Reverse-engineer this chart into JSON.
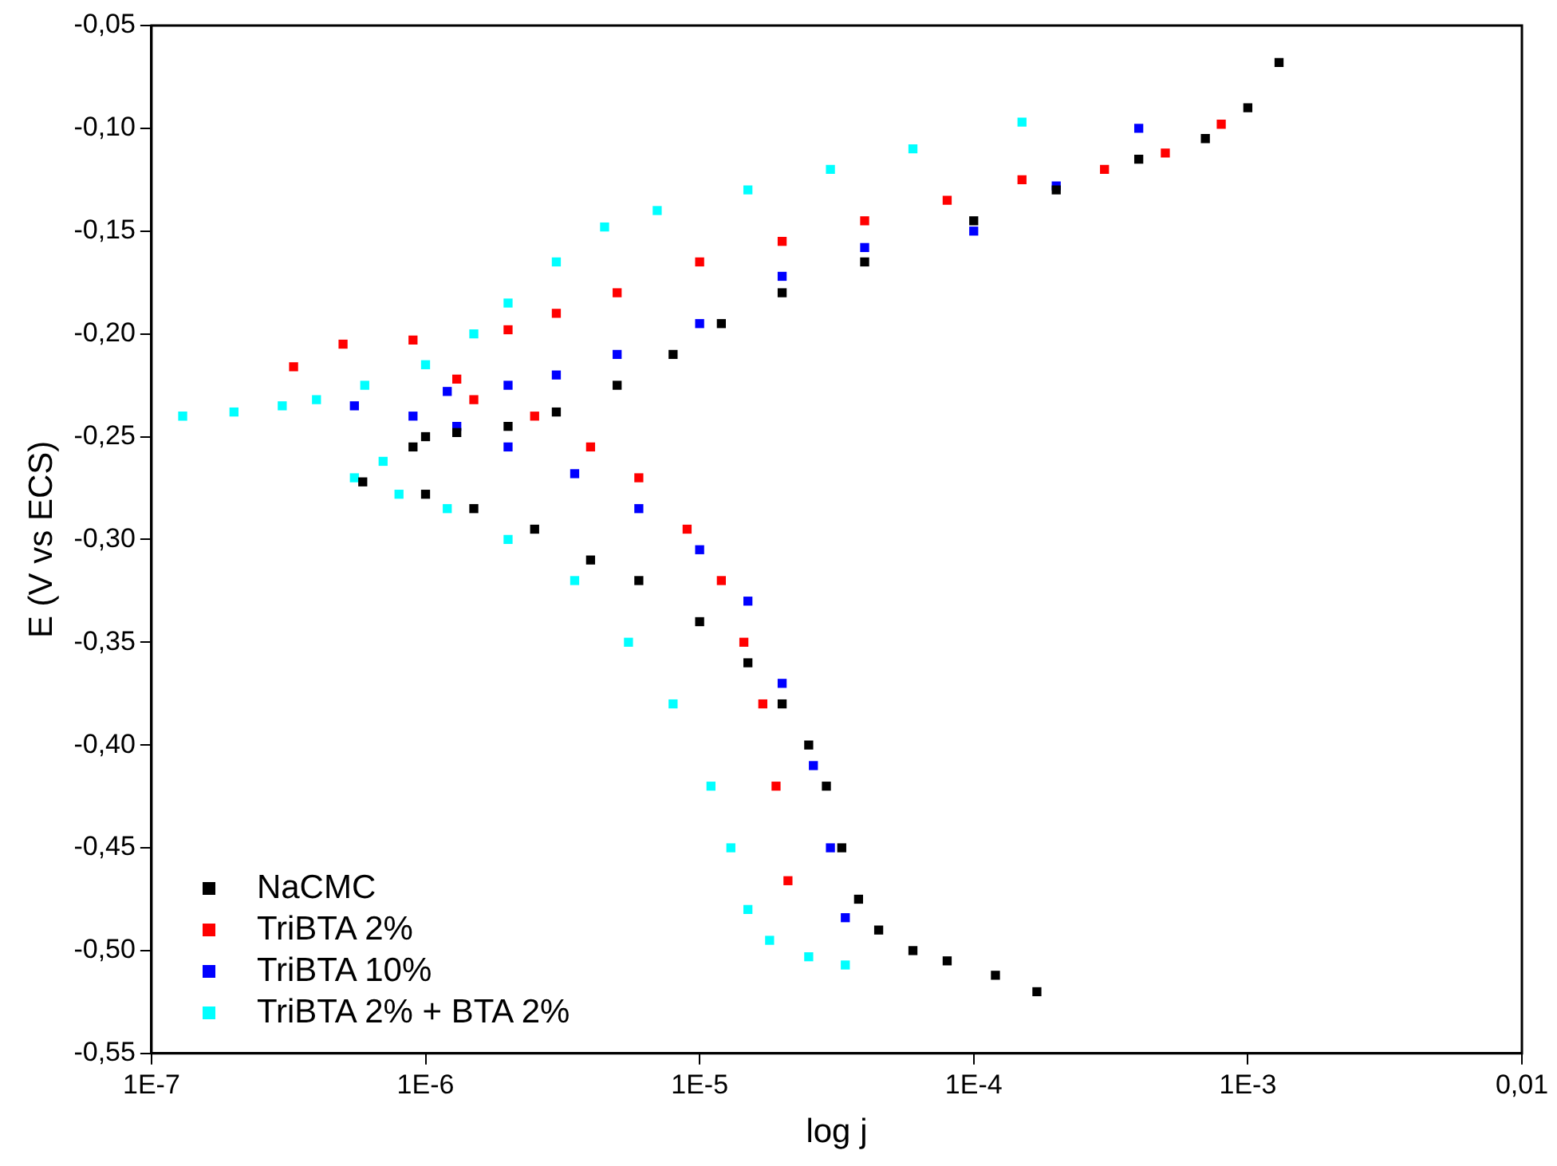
{
  "chart_data": {
    "type": "scatter",
    "xlabel": "log j",
    "ylabel": "E (V vs ECS)",
    "log": "x",
    "grid": false,
    "legend": "bottom left",
    "marker": "square",
    "xlim": [
      1e-07,
      0.01
    ],
    "xticks": [
      {
        "value": 1e-07,
        "label": "1E-7"
      },
      {
        "value": 1e-06,
        "label": "1E-6"
      },
      {
        "value": 1e-05,
        "label": "1E-5"
      },
      {
        "value": 0.0001,
        "label": "1E-4"
      },
      {
        "value": 0.001,
        "label": "1E-3"
      },
      {
        "value": 0.01,
        "label": "0,01"
      }
    ],
    "ylim": [
      -0.55,
      -0.05
    ],
    "yticks": [
      {
        "value": -0.55,
        "label": "-0,55"
      },
      {
        "value": -0.5,
        "label": "-0,50"
      },
      {
        "value": -0.45,
        "label": "-0,45"
      },
      {
        "value": -0.4,
        "label": "-0,40"
      },
      {
        "value": -0.35,
        "label": "-0,35"
      },
      {
        "value": -0.3,
        "label": "-0,30"
      },
      {
        "value": -0.25,
        "label": "-0,25"
      },
      {
        "value": -0.2,
        "label": "-0,20"
      },
      {
        "value": -0.15,
        "label": "-0,15"
      },
      {
        "value": -0.1,
        "label": "-0,10"
      },
      {
        "value": -0.05,
        "label": "-0,05"
      }
    ],
    "series": [
      {
        "name": "NaCMC",
        "color": "#000000",
        "x": [
          0.00017,
          0.00012,
          8e-05,
          6e-05,
          4.5e-05,
          3.8e-05,
          3.3e-05,
          2.9e-05,
          2.5e-05,
          2e-05,
          1.5e-05,
          1e-05,
          6e-06,
          4e-06,
          2.5e-06,
          1.5e-06,
          1e-06,
          5.9e-07,
          9e-07,
          1e-06,
          1.3e-06,
          2e-06,
          3e-06,
          5e-06,
          8e-06,
          1.2e-05,
          2e-05,
          4e-05,
          0.0001,
          0.0002,
          0.0004,
          0.0007,
          0.001,
          0.0013
        ],
        "values": [
          -0.52,
          -0.512,
          -0.505,
          -0.5,
          -0.49,
          -0.475,
          -0.45,
          -0.42,
          -0.4,
          -0.38,
          -0.36,
          -0.34,
          -0.32,
          -0.31,
          -0.295,
          -0.285,
          -0.278,
          -0.272,
          -0.255,
          -0.25,
          -0.248,
          -0.245,
          -0.238,
          -0.225,
          -0.21,
          -0.195,
          -0.18,
          -0.165,
          -0.145,
          -0.13,
          -0.115,
          -0.105,
          -0.09,
          -0.068
        ]
      },
      {
        "name": "TriBTA 2%",
        "color": "#ff0000",
        "x": [
          2.1e-05,
          1.9e-05,
          1.7e-05,
          1.45e-05,
          1.2e-05,
          9e-06,
          6e-06,
          4e-06,
          2.5e-06,
          1.5e-06,
          1.3e-06,
          3.3e-07,
          5e-07,
          9e-07,
          2e-06,
          3e-06,
          5e-06,
          1e-05,
          2e-05,
          4e-05,
          8e-05,
          0.00015,
          0.0003,
          0.0005,
          0.0008
        ],
        "values": [
          -0.466,
          -0.42,
          -0.38,
          -0.35,
          -0.32,
          -0.295,
          -0.27,
          -0.255,
          -0.24,
          -0.232,
          -0.222,
          -0.216,
          -0.205,
          -0.203,
          -0.198,
          -0.19,
          -0.18,
          -0.165,
          -0.155,
          -0.145,
          -0.135,
          -0.125,
          -0.12,
          -0.112,
          -0.098
        ]
      },
      {
        "name": "TriBTA 10%",
        "color": "#0000ff",
        "x": [
          3.4e-05,
          3e-05,
          2.6e-05,
          2e-05,
          1.5e-05,
          1e-05,
          6e-06,
          3.5e-06,
          2e-06,
          1.3e-06,
          9e-07,
          5.5e-07,
          1.2e-06,
          2e-06,
          3e-06,
          5e-06,
          1e-05,
          2e-05,
          4e-05,
          0.0001,
          0.0002,
          0.0004
        ],
        "values": [
          -0.484,
          -0.45,
          -0.41,
          -0.37,
          -0.33,
          -0.305,
          -0.285,
          -0.268,
          -0.255,
          -0.245,
          -0.24,
          -0.235,
          -0.228,
          -0.225,
          -0.22,
          -0.21,
          -0.195,
          -0.172,
          -0.158,
          -0.15,
          -0.128,
          -0.1
        ]
      },
      {
        "name": "TriBTA 2% + BTA 2%",
        "color": "#00ffff",
        "x": [
          3.4e-05,
          2.5e-05,
          1.8e-05,
          1.5e-05,
          1.3e-05,
          1.1e-05,
          8e-06,
          5.5e-06,
          3.5e-06,
          2e-06,
          1.2e-06,
          8e-07,
          5.5e-07,
          7e-07,
          1.3e-07,
          2e-07,
          3e-07,
          4e-07,
          6e-07,
          1e-06,
          1.5e-06,
          2e-06,
          3e-06,
          4.5e-06,
          7e-06,
          1.5e-05,
          3e-05,
          6e-05,
          0.00015
        ],
        "values": [
          -0.507,
          -0.503,
          -0.495,
          -0.48,
          -0.45,
          -0.42,
          -0.38,
          -0.35,
          -0.32,
          -0.3,
          -0.285,
          -0.278,
          -0.27,
          -0.262,
          -0.24,
          -0.238,
          -0.235,
          -0.232,
          -0.225,
          -0.215,
          -0.2,
          -0.185,
          -0.165,
          -0.148,
          -0.14,
          -0.13,
          -0.12,
          -0.11,
          -0.097
        ]
      }
    ]
  }
}
